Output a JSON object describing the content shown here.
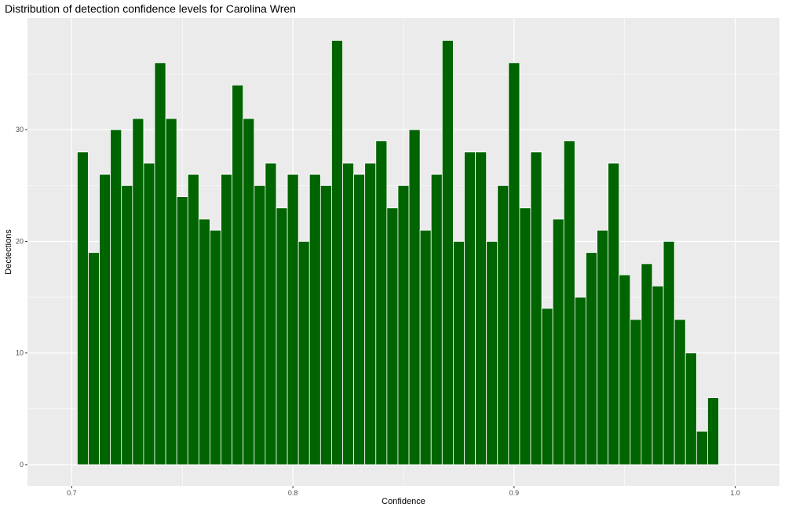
{
  "chart_data": {
    "type": "bar",
    "title": "Distribution of detection confidence levels for Carolina Wren",
    "xlabel": "Confidence",
    "ylabel": "Dectections",
    "x_ticks": [
      "0.7",
      "0.8",
      "0.9",
      "1.0"
    ],
    "y_ticks": [
      "0",
      "10",
      "20",
      "30"
    ],
    "xlim": [
      0.68,
      1.02
    ],
    "ylim": [
      -1.9,
      40
    ],
    "bin_start": 0.7025,
    "bin_width": 0.005,
    "values": [
      28,
      19,
      26,
      30,
      25,
      31,
      27,
      36,
      31,
      24,
      26,
      22,
      21,
      26,
      34,
      31,
      25,
      27,
      23,
      26,
      20,
      26,
      25,
      38,
      27,
      26,
      27,
      29,
      23,
      25,
      30,
      21,
      26,
      38,
      20,
      28,
      28,
      20,
      25,
      36,
      23,
      28,
      14,
      22,
      29,
      15,
      19,
      21,
      27,
      17,
      13,
      18,
      16,
      20,
      13,
      10,
      3,
      6
    ],
    "bar_color": "#006400",
    "bar_outline": "#ffffff",
    "panel_background": "#ebebeb",
    "grid": true,
    "legend": "none"
  }
}
